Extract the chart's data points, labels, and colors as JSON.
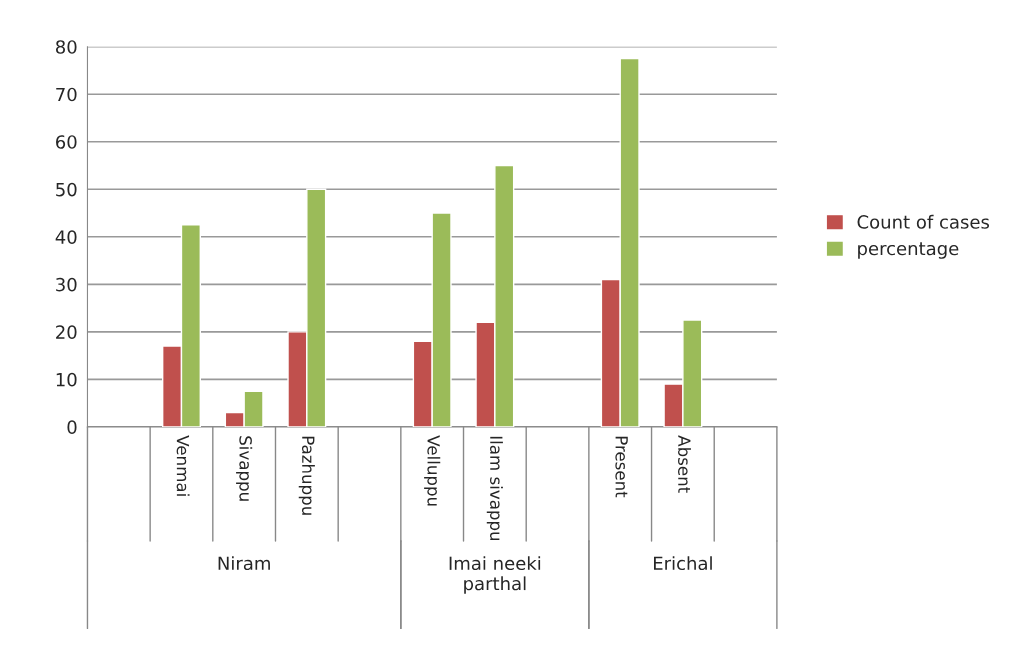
{
  "chart_data": {
    "type": "bar",
    "categories": [
      null,
      "Venmai",
      "Sivappu",
      "Pazhuppu",
      null,
      "Velluppu",
      "Ilam sivappu",
      null,
      "Present",
      "Absent",
      null
    ],
    "series": [
      {
        "name": "Count of cases",
        "color": "#c0504d",
        "values": [
          null,
          17,
          3,
          20,
          null,
          18,
          22,
          null,
          31,
          9,
          null
        ]
      },
      {
        "name": "percentage",
        "color": "#9bbb59",
        "values": [
          null,
          42.5,
          7.5,
          50,
          null,
          45,
          55,
          null,
          77.5,
          22.5,
          null
        ]
      }
    ],
    "annotations": [
      "Niram",
      "Imai neeki\nparthal",
      "Erichal"
    ],
    "ylim": [
      0,
      80
    ],
    "yticks": [
      0,
      10,
      20,
      30,
      40,
      50,
      60,
      70,
      80
    ],
    "grid": "y",
    "legend": "right"
  }
}
